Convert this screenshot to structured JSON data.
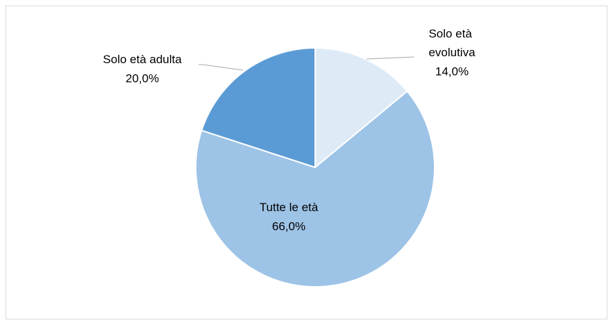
{
  "chart_data": {
    "type": "pie",
    "categories": [
      "Solo età evolutiva",
      "Tutte le età",
      "Solo età adulta"
    ],
    "values": [
      14.0,
      66.0,
      20.0
    ],
    "value_labels": [
      "14,0%",
      "66,0%",
      "20,0%"
    ],
    "colors": [
      "#deebf7",
      "#9dc3e6",
      "#5b9bd5"
    ]
  }
}
